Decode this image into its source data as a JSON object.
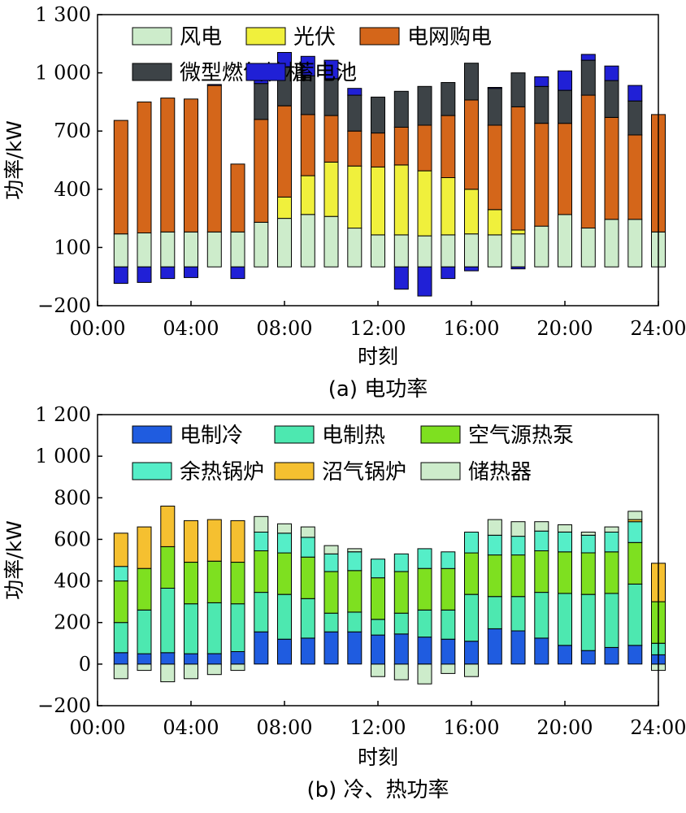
{
  "chart_data": [
    {
      "type": "bar",
      "stacked": true,
      "caption": "(a) 电功率",
      "xlabel": "时刻",
      "ylabel": "功率/kW",
      "ylim": [
        -200,
        1300
      ],
      "yticks": [
        -200,
        100,
        400,
        700,
        1000,
        1300
      ],
      "ytick_labels": [
        "−200",
        "100",
        "400",
        "700",
        "1 000",
        "1 300"
      ],
      "xlim": [
        0,
        24
      ],
      "xticks": [
        0,
        4,
        8,
        12,
        16,
        20,
        24
      ],
      "xtick_labels": [
        "00:00",
        "04:00",
        "08:00",
        "12:00",
        "16:00",
        "20:00",
        "24:00"
      ],
      "categories": [
        1,
        2,
        3,
        4,
        5,
        6,
        7,
        8,
        9,
        10,
        11,
        12,
        13,
        14,
        15,
        16,
        17,
        18,
        19,
        20,
        21,
        22,
        23,
        24
      ],
      "legend": {
        "placement": "top",
        "columns": 3
      },
      "series": [
        {
          "name": "风电",
          "color": "#cdeccb",
          "values": [
            170,
            175,
            180,
            180,
            180,
            180,
            230,
            250,
            270,
            260,
            200,
            165,
            165,
            160,
            165,
            170,
            165,
            170,
            210,
            270,
            200,
            245,
            245,
            180
          ]
        },
        {
          "name": "光伏",
          "color": "#f0f03c",
          "values": [
            0,
            0,
            0,
            0,
            0,
            0,
            0,
            110,
            200,
            280,
            320,
            350,
            360,
            335,
            295,
            230,
            130,
            20,
            0,
            0,
            0,
            0,
            0,
            0
          ]
        },
        {
          "name": "电网购电",
          "color": "#d4661a",
          "values": [
            585,
            675,
            690,
            685,
            755,
            350,
            530,
            470,
            315,
            240,
            180,
            175,
            195,
            235,
            320,
            460,
            435,
            635,
            530,
            470,
            685,
            525,
            435,
            605
          ]
        },
        {
          "name": "微型燃气轮机",
          "color": "#3d4347",
          "values": [
            0,
            0,
            0,
            0,
            0,
            0,
            185,
            200,
            200,
            190,
            185,
            185,
            185,
            200,
            170,
            190,
            190,
            175,
            190,
            170,
            180,
            190,
            175,
            0
          ]
        },
        {
          "name": "蓄电池",
          "color": "#2020d6",
          "values": [
            -85,
            -80,
            -60,
            -55,
            5,
            -60,
            65,
            75,
            100,
            95,
            35,
            0,
            -115,
            -150,
            -60,
            -20,
            5,
            -10,
            50,
            100,
            30,
            75,
            80,
            0
          ]
        }
      ]
    },
    {
      "type": "bar",
      "stacked": true,
      "caption": "(b) 冷、热功率",
      "xlabel": "时刻",
      "ylabel": "功率/kW",
      "ylim": [
        -200,
        1200
      ],
      "yticks": [
        -200,
        0,
        200,
        400,
        600,
        800,
        1000,
        1200
      ],
      "ytick_labels": [
        "−200",
        "0",
        "200",
        "400",
        "600",
        "800",
        "1 000",
        "1 200"
      ],
      "xlim": [
        0,
        24
      ],
      "xticks": [
        0,
        4,
        8,
        12,
        16,
        20,
        24
      ],
      "xtick_labels": [
        "00:00",
        "04:00",
        "08:00",
        "12:00",
        "16:00",
        "20:00",
        "24:00"
      ],
      "categories": [
        1,
        2,
        3,
        4,
        5,
        6,
        7,
        8,
        9,
        10,
        11,
        12,
        13,
        14,
        15,
        16,
        17,
        18,
        19,
        20,
        21,
        22,
        23,
        24
      ],
      "legend": {
        "placement": "top",
        "columns": 3
      },
      "series": [
        {
          "name": "电制冷",
          "color": "#1f5ce0",
          "values": [
            55,
            50,
            55,
            50,
            50,
            60,
            155,
            120,
            125,
            155,
            155,
            140,
            145,
            130,
            120,
            110,
            170,
            160,
            125,
            90,
            65,
            80,
            90,
            45
          ]
        },
        {
          "name": "电制热",
          "color": "#4de8b0",
          "values": [
            145,
            210,
            310,
            240,
            245,
            230,
            190,
            215,
            190,
            90,
            95,
            75,
            100,
            130,
            140,
            225,
            155,
            165,
            220,
            250,
            270,
            260,
            295,
            55
          ]
        },
        {
          "name": "空气源热泵",
          "color": "#7ee020",
          "values": [
            200,
            200,
            200,
            200,
            200,
            200,
            200,
            200,
            200,
            200,
            200,
            200,
            200,
            200,
            200,
            200,
            200,
            200,
            200,
            200,
            200,
            200,
            200,
            200
          ]
        },
        {
          "name": "余热锅炉",
          "color": "#55eec8",
          "values": [
            70,
            0,
            0,
            0,
            0,
            0,
            90,
            95,
            95,
            85,
            90,
            90,
            85,
            95,
            80,
            100,
            95,
            90,
            95,
            95,
            85,
            95,
            100,
            0
          ]
        },
        {
          "name": "沼气锅炉",
          "color": "#f5c030",
          "values": [
            160,
            200,
            195,
            200,
            200,
            200,
            0,
            0,
            0,
            0,
            0,
            0,
            0,
            0,
            0,
            0,
            0,
            0,
            0,
            0,
            0,
            0,
            10,
            185
          ]
        },
        {
          "name": "储热器",
          "color": "#cdeccb",
          "values": [
            -70,
            -30,
            -85,
            -70,
            -50,
            -30,
            75,
            45,
            50,
            40,
            15,
            -60,
            -75,
            -95,
            -45,
            -60,
            75,
            70,
            45,
            35,
            15,
            25,
            40,
            -30
          ]
        }
      ]
    }
  ]
}
